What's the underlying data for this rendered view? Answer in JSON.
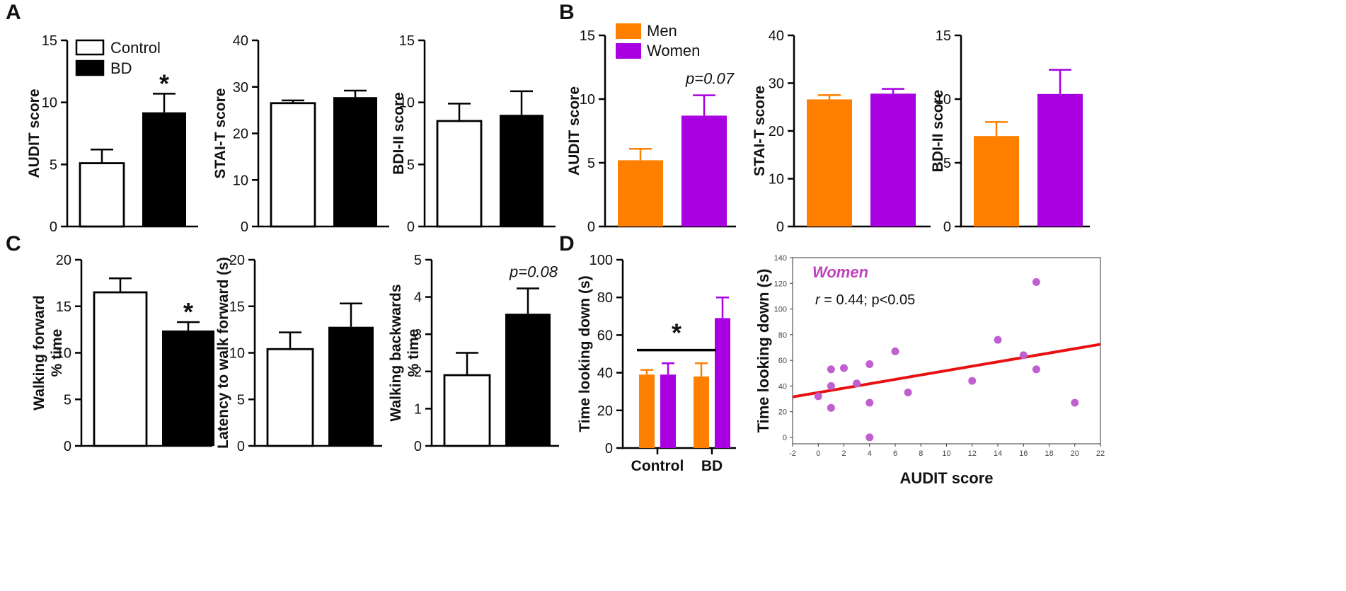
{
  "panels": {
    "A": "A",
    "B": "B",
    "C": "C",
    "D": "D"
  },
  "legends": {
    "group": [
      {
        "label": "Control",
        "fill": "#ffffff"
      },
      {
        "label": "BD",
        "fill": "#000000"
      }
    ],
    "sex": [
      {
        "label": "Men",
        "fill": "#ff8000"
      },
      {
        "label": "Women",
        "fill": "#a800e0"
      }
    ]
  },
  "colors": {
    "control": "#ffffff",
    "bd": "#000000",
    "men": "#ff8000",
    "women": "#a800e0",
    "scatter_point": "#c060d0",
    "regression": "#e81010",
    "women_label": "#c040c0"
  },
  "chart_data": [
    {
      "id": "A1",
      "type": "bar",
      "ylabel": "AUDIT score",
      "ylim": [
        0,
        15
      ],
      "yticks": [
        "0",
        "5",
        "10",
        "15"
      ],
      "categories": [
        "Control",
        "BD"
      ],
      "values": [
        5.1,
        9.2
      ],
      "errors": [
        1.1,
        1.5
      ],
      "colors": [
        "control",
        "bd"
      ],
      "annotation": {
        "text": "*",
        "bar": 1,
        "style": "star"
      }
    },
    {
      "id": "A2",
      "type": "bar",
      "ylabel": "STAI-T score",
      "ylim": [
        0,
        40
      ],
      "yticks": [
        "0",
        "10",
        "20",
        "30",
        "40"
      ],
      "categories": [
        "Control",
        "BD"
      ],
      "values": [
        26.5,
        27.8
      ],
      "errors": [
        0.6,
        1.4
      ],
      "colors": [
        "control",
        "bd"
      ]
    },
    {
      "id": "A3",
      "type": "bar",
      "ylabel": "BDI-II score",
      "ylim": [
        0,
        15
      ],
      "yticks": [
        "0",
        "5",
        "10",
        "15"
      ],
      "categories": [
        "Control",
        "BD"
      ],
      "values": [
        8.5,
        9.0
      ],
      "errors": [
        1.4,
        1.9
      ],
      "colors": [
        "control",
        "bd"
      ]
    },
    {
      "id": "B1",
      "type": "bar",
      "ylabel": "AUDIT score",
      "ylim": [
        0,
        15
      ],
      "yticks": [
        "0",
        "5",
        "10",
        "15"
      ],
      "categories": [
        "Men",
        "Women"
      ],
      "values": [
        5.2,
        8.7
      ],
      "errors": [
        0.9,
        1.6
      ],
      "colors": [
        "men",
        "women"
      ],
      "annotation": {
        "text": "p=0.07",
        "bar": 1,
        "style": "italic"
      }
    },
    {
      "id": "B2",
      "type": "bar",
      "ylabel": "STAI-T score",
      "ylim": [
        0,
        40
      ],
      "yticks": [
        "0",
        "10",
        "20",
        "30",
        "40"
      ],
      "categories": [
        "Men",
        "Women"
      ],
      "values": [
        26.6,
        27.8
      ],
      "errors": [
        0.9,
        1.0
      ],
      "colors": [
        "men",
        "women"
      ]
    },
    {
      "id": "B3",
      "type": "bar",
      "ylabel": "BDI-II score",
      "ylim": [
        0,
        15
      ],
      "yticks": [
        "0",
        "5",
        "10",
        "15"
      ],
      "categories": [
        "Men",
        "Women"
      ],
      "values": [
        7.1,
        10.4
      ],
      "errors": [
        1.1,
        1.9
      ],
      "colors": [
        "men",
        "women"
      ]
    },
    {
      "id": "C1",
      "type": "bar",
      "ylabel": [
        "Walking forward",
        "% time"
      ],
      "ylim": [
        0,
        20
      ],
      "yticks": [
        "0",
        "5",
        "10",
        "15",
        "20"
      ],
      "categories": [
        "Control",
        "BD"
      ],
      "values": [
        16.5,
        12.4
      ],
      "errors": [
        1.5,
        0.9
      ],
      "colors": [
        "control",
        "bd"
      ],
      "annotation": {
        "text": "*",
        "bar": 1,
        "style": "star"
      }
    },
    {
      "id": "C2",
      "type": "bar",
      "ylabel": "Latency to walk forward (s)",
      "ylim": [
        0,
        20
      ],
      "yticks": [
        "0",
        "5",
        "10",
        "15",
        "20"
      ],
      "categories": [
        "Control",
        "BD"
      ],
      "values": [
        10.4,
        12.8
      ],
      "errors": [
        1.8,
        2.5
      ],
      "colors": [
        "control",
        "bd"
      ]
    },
    {
      "id": "C3",
      "type": "bar",
      "ylabel": [
        "Walking backwards",
        "% time"
      ],
      "ylim": [
        0,
        5
      ],
      "yticks": [
        "0",
        "1",
        "2",
        "3",
        "4",
        "5"
      ],
      "categories": [
        "Control",
        "BD"
      ],
      "values": [
        1.9,
        3.55
      ],
      "errors": [
        0.6,
        0.68
      ],
      "colors": [
        "control",
        "bd"
      ],
      "annotation": {
        "text": "p=0.08",
        "bar": 1,
        "style": "italic"
      }
    },
    {
      "id": "D1",
      "type": "bar",
      "ylabel": "Time looking down (s)",
      "ylim": [
        0,
        100
      ],
      "yticks": [
        "0",
        "20",
        "40",
        "60",
        "80",
        "100"
      ],
      "categories": [
        "Control",
        "BD"
      ],
      "series": [
        {
          "name": "Men",
          "values": [
            39,
            38
          ],
          "errors": [
            2.5,
            7
          ],
          "color": "men"
        },
        {
          "name": "Women",
          "values": [
            39,
            69
          ],
          "errors": [
            6,
            11
          ],
          "color": "women"
        }
      ],
      "annotation": {
        "text": "*",
        "style": "star",
        "bracket_value": 52
      }
    },
    {
      "id": "D2",
      "type": "scatter",
      "title": "Women",
      "subtitle_r": "r",
      "subtitle_rest": " = 0.44; p<0.05",
      "xlabel": "AUDIT score",
      "ylabel": "Time looking down (s)",
      "xlim": [
        -2,
        22
      ],
      "ylim": [
        -5,
        140
      ],
      "xticks": [
        "-2",
        "0",
        "2",
        "4",
        "6",
        "8",
        "10",
        "12",
        "14",
        "16",
        "18",
        "20",
        "22"
      ],
      "yticks": [
        "0",
        "20",
        "40",
        "60",
        "80",
        "100",
        "120",
        "140"
      ],
      "points": [
        [
          0,
          32
        ],
        [
          1,
          23
        ],
        [
          1,
          40
        ],
        [
          1,
          53
        ],
        [
          2,
          54
        ],
        [
          3,
          42
        ],
        [
          4,
          57
        ],
        [
          4,
          27
        ],
        [
          4,
          0
        ],
        [
          6,
          67
        ],
        [
          7,
          35
        ],
        [
          12,
          44
        ],
        [
          14,
          76
        ],
        [
          16,
          64
        ],
        [
          17,
          53
        ],
        [
          17,
          121
        ],
        [
          20,
          27
        ]
      ],
      "regression": {
        "x": [
          -2,
          22
        ],
        "y": [
          31.5,
          72.5
        ]
      }
    }
  ]
}
